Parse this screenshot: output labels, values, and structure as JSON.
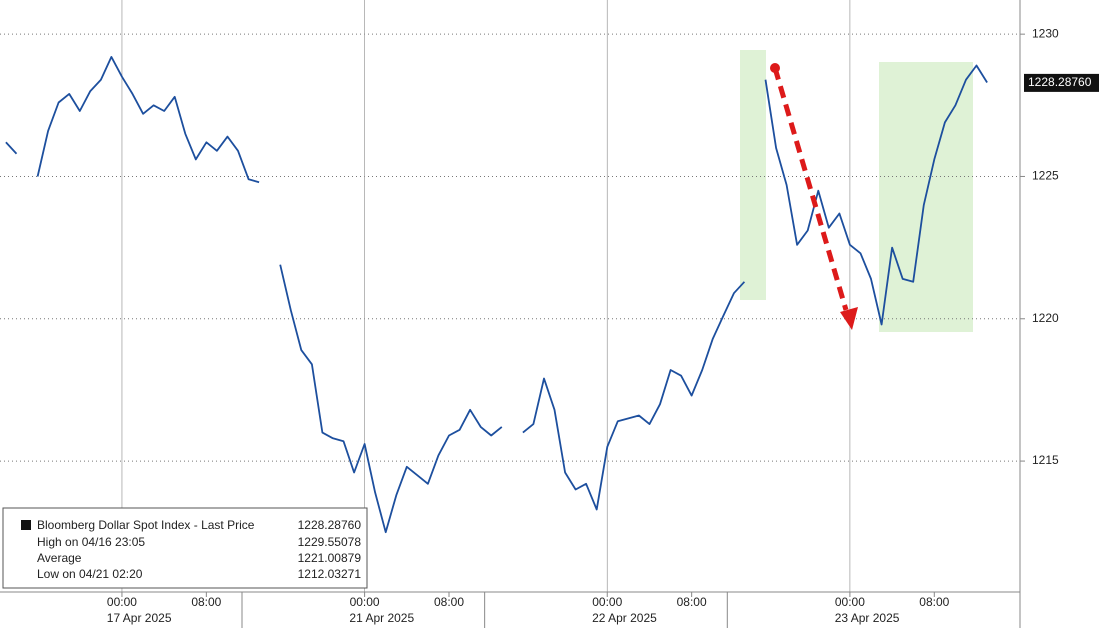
{
  "chart_data": {
    "type": "line",
    "color": "#1d4f9e",
    "categories": [
      null,
      null,
      null,
      null,
      null,
      null,
      null,
      null,
      null,
      null,
      null,
      "00:00",
      null,
      null,
      null,
      null,
      null,
      null,
      null,
      "08:00",
      null,
      null,
      null,
      null,
      null,
      null,
      null,
      null,
      null,
      null,
      null,
      null,
      null,
      null,
      "00:00",
      null,
      null,
      null,
      null,
      null,
      null,
      null,
      "08:00",
      null,
      null,
      null,
      null,
      null,
      null,
      null,
      null,
      null,
      null,
      null,
      null,
      null,
      null,
      "00:00",
      null,
      null,
      null,
      null,
      null,
      null,
      null,
      "08:00",
      null,
      null,
      null,
      null,
      null,
      null,
      null,
      null,
      null,
      null,
      null,
      null,
      null,
      null,
      "00:00",
      null,
      null,
      null,
      null,
      null,
      null,
      null,
      "08:00",
      null,
      null,
      null,
      null,
      null
    ],
    "x_groups": [
      "17 Apr 2025",
      "21 Apr 2025",
      "22 Apr 2025",
      "23 Apr 2025"
    ],
    "values": [
      1226.2,
      1225.8,
      null,
      1225.0,
      1226.6,
      1227.6,
      1227.9,
      1227.3,
      1228.0,
      1228.4,
      1229.2,
      1228.5,
      1227.9,
      1227.2,
      1227.5,
      1227.3,
      1227.8,
      1226.5,
      1225.6,
      1226.2,
      1225.9,
      1226.4,
      1225.9,
      1224.9,
      1224.8,
      null,
      1221.9,
      1220.3,
      1218.9,
      1218.4,
      1216.0,
      1215.8,
      1215.7,
      1214.6,
      1215.6,
      1213.9,
      1212.5,
      1213.8,
      1214.8,
      1214.5,
      1214.2,
      1215.2,
      1215.9,
      1216.1,
      1216.8,
      1216.2,
      1215.9,
      1216.2,
      null,
      1216.0,
      1216.3,
      1217.9,
      1216.8,
      1214.6,
      1214.0,
      1214.2,
      1213.3,
      1215.5,
      1216.4,
      1216.5,
      1216.6,
      1216.3,
      1217.0,
      1218.2,
      1218.0,
      1217.3,
      1218.2,
      1219.3,
      1220.1,
      1220.9,
      1221.3,
      null,
      1228.4,
      1226.0,
      1224.7,
      1222.6,
      1223.1,
      1224.5,
      1223.2,
      1223.7,
      1222.6,
      1222.3,
      1221.4,
      1219.8,
      1222.5,
      1221.4,
      1221.3,
      1224.0,
      1225.6,
      1226.9,
      1227.5,
      1228.4,
      1228.9,
      1228.3
    ],
    "ylim": [
      1210.4,
      1231.2
    ],
    "yticks": [
      1215,
      1220,
      1225,
      1230
    ],
    "grid": true,
    "last_value": 1228.2876,
    "last_value_label": "1228.28760",
    "legend": {
      "name": "Bloomberg Dollar Spot Index - Last Price",
      "stats": [
        {
          "label": "High on 04/16 23:05",
          "value": 1229.55078
        },
        {
          "label": "Average",
          "value": 1221.00879
        },
        {
          "label": "Low on 04/21 02:20",
          "value": 1212.03271
        }
      ]
    }
  }
}
